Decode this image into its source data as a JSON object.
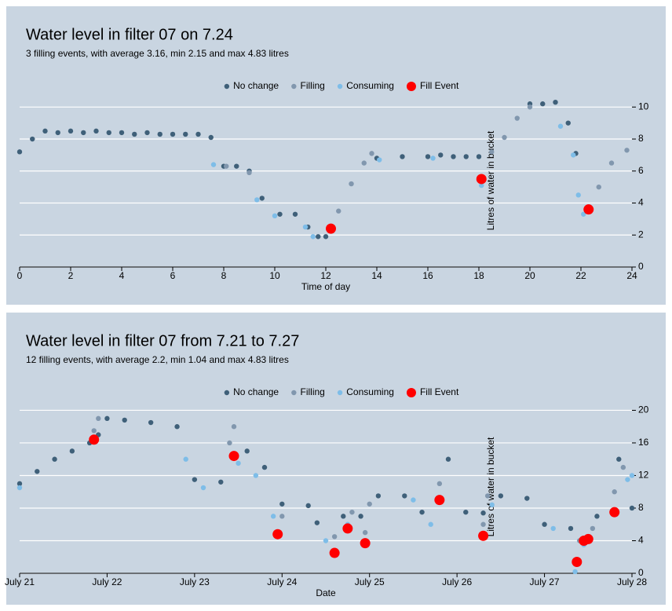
{
  "chart_data": [
    {
      "type": "scatter",
      "title": "Water level in filter 07 on 7.24",
      "subtitle": "3 filling events, with average 3.16, min 2.15 and max 4.83 litres",
      "xlabel": "Time of day",
      "ylabel": "Litres of water in bucket",
      "xlim": [
        0,
        24
      ],
      "xticks": [
        0,
        2,
        4,
        6,
        8,
        10,
        12,
        14,
        16,
        18,
        20,
        22,
        24
      ],
      "ylim": [
        0,
        10.8
      ],
      "yticks": [
        0,
        2,
        4,
        6,
        8,
        10
      ],
      "grid": true,
      "legend": "top",
      "series": [
        {
          "name": "No change",
          "color": "#3f6079",
          "marker_size": 3.2,
          "x": [
            0,
            0.5,
            1,
            1.5,
            2,
            2.5,
            3,
            3.5,
            4,
            4.5,
            5,
            5.5,
            6,
            6.5,
            7,
            7.5,
            8,
            8.5,
            9,
            9.5,
            10.2,
            10.8,
            11.3,
            11.7,
            12,
            14,
            15,
            16,
            16.5,
            17,
            17.5,
            18,
            20,
            20.5,
            21,
            21.5,
            21.8
          ],
          "values": [
            7.2,
            8,
            8.5,
            8.4,
            8.5,
            8.4,
            8.5,
            8.4,
            8.4,
            8.3,
            8.4,
            8.3,
            8.3,
            8.3,
            8.3,
            8.1,
            6.3,
            6.3,
            6.0,
            4.3,
            3.3,
            3.3,
            2.5,
            1.9,
            1.9,
            6.8,
            6.9,
            6.9,
            7.0,
            6.9,
            6.9,
            6.9,
            10.2,
            10.2,
            10.3,
            9.0,
            7.1
          ]
        },
        {
          "name": "Filling",
          "color": "#8197ae",
          "marker_size": 3.2,
          "x": [
            8.1,
            9.0,
            12.5,
            13,
            13.5,
            13.8,
            18.5,
            19,
            19.5,
            20,
            22.3,
            22.7,
            23.2,
            23.8
          ],
          "values": [
            6.3,
            5.9,
            3.5,
            5.2,
            6.5,
            7.1,
            7.2,
            8.1,
            9.3,
            10,
            3.5,
            5,
            6.5,
            7.3
          ]
        },
        {
          "name": "Consuming",
          "color": "#7ebde8",
          "marker_size": 3.2,
          "x": [
            7.6,
            9.3,
            10,
            11.2,
            11.5,
            14.1,
            16.2,
            18.1,
            21.2,
            21.7,
            21.9,
            22.1
          ],
          "values": [
            6.4,
            4.2,
            3.2,
            2.5,
            1.9,
            6.7,
            6.8,
            5.1,
            8.8,
            7.0,
            4.5,
            3.3
          ]
        },
        {
          "name": "Fill Event",
          "color": "#ff0000",
          "marker_size": 6.5,
          "x": [
            12.2,
            18.1,
            22.3
          ],
          "values": [
            2.4,
            5.5,
            3.6
          ]
        }
      ]
    },
    {
      "type": "scatter",
      "title": "Water level in filter 07 from 7.21 to 7.27",
      "subtitle": "12 filling events, with average 2.2, min 1.04 and max 4.83 litres",
      "xlabel": "Date",
      "ylabel": "Litres of water in bucket",
      "xlim": [
        21,
        28
      ],
      "xticks": [
        {
          "value": 21,
          "label": "July 21"
        },
        {
          "value": 22,
          "label": "July 22"
        },
        {
          "value": 23,
          "label": "July 23"
        },
        {
          "value": 24,
          "label": "July 24"
        },
        {
          "value": 25,
          "label": "July 25"
        },
        {
          "value": 26,
          "label": "July 26"
        },
        {
          "value": 27,
          "label": "July 27"
        },
        {
          "value": 28,
          "label": "July 28"
        }
      ],
      "ylim": [
        0,
        21.2
      ],
      "yticks": [
        0,
        4,
        8,
        12,
        16,
        20
      ],
      "grid": true,
      "legend": "top",
      "series": [
        {
          "name": "No change",
          "color": "#3f6079",
          "marker_size": 3.2,
          "x": [
            21,
            21.2,
            21.4,
            21.6,
            21.8,
            21.9,
            22.0,
            22.2,
            22.5,
            22.8,
            23.0,
            23.3,
            23.6,
            23.8,
            24.0,
            24.3,
            24.4,
            24.6,
            24.7,
            24.9,
            25.1,
            25.4,
            25.6,
            25.9,
            26.1,
            26.3,
            26.5,
            26.8,
            27.0,
            27.3,
            27.6,
            27.85,
            28
          ],
          "values": [
            11,
            12.5,
            14,
            15,
            16,
            17,
            19,
            18.8,
            18.5,
            18,
            11.5,
            11.2,
            15,
            13,
            8.5,
            8.3,
            6.2,
            2.3,
            7,
            7,
            9.5,
            9.5,
            7.5,
            14,
            7.5,
            7.4,
            9.5,
            9.2,
            6,
            5.5,
            7,
            14,
            8
          ]
        },
        {
          "name": "Filling",
          "color": "#8197ae",
          "marker_size": 3.2,
          "x": [
            21.85,
            21.9,
            23.4,
            23.45,
            24.0,
            24.6,
            24.8,
            24.95,
            25.0,
            25.8,
            26.3,
            26.35,
            27.4,
            27.55,
            27.8,
            27.9
          ],
          "values": [
            17.5,
            19,
            16,
            18,
            7,
            4.5,
            7.5,
            5,
            8.5,
            11,
            6,
            9.5,
            4,
            5.5,
            10,
            13
          ]
        },
        {
          "name": "Consuming",
          "color": "#7ebde8",
          "marker_size": 3.2,
          "x": [
            21.0,
            22.9,
            23.1,
            23.5,
            23.7,
            23.9,
            24.5,
            24.75,
            25.5,
            25.7,
            26.4,
            27.1,
            27.35,
            27.45,
            28.0,
            27.95
          ],
          "values": [
            10.5,
            14,
            10.5,
            13.5,
            12,
            7,
            4,
            6,
            9,
            6,
            8.4,
            5.5,
            0.2,
            3.5,
            12,
            11.5
          ]
        },
        {
          "name": "Fill Event",
          "color": "#ff0000",
          "marker_size": 6.5,
          "x": [
            21.85,
            23.45,
            23.95,
            24.6,
            24.75,
            24.95,
            25.8,
            26.3,
            27.37,
            27.45,
            27.5,
            27.8
          ],
          "values": [
            16.4,
            14.4,
            4.8,
            2.5,
            5.5,
            3.7,
            9.0,
            4.6,
            1.4,
            4.0,
            4.2,
            7.5
          ]
        }
      ]
    }
  ]
}
